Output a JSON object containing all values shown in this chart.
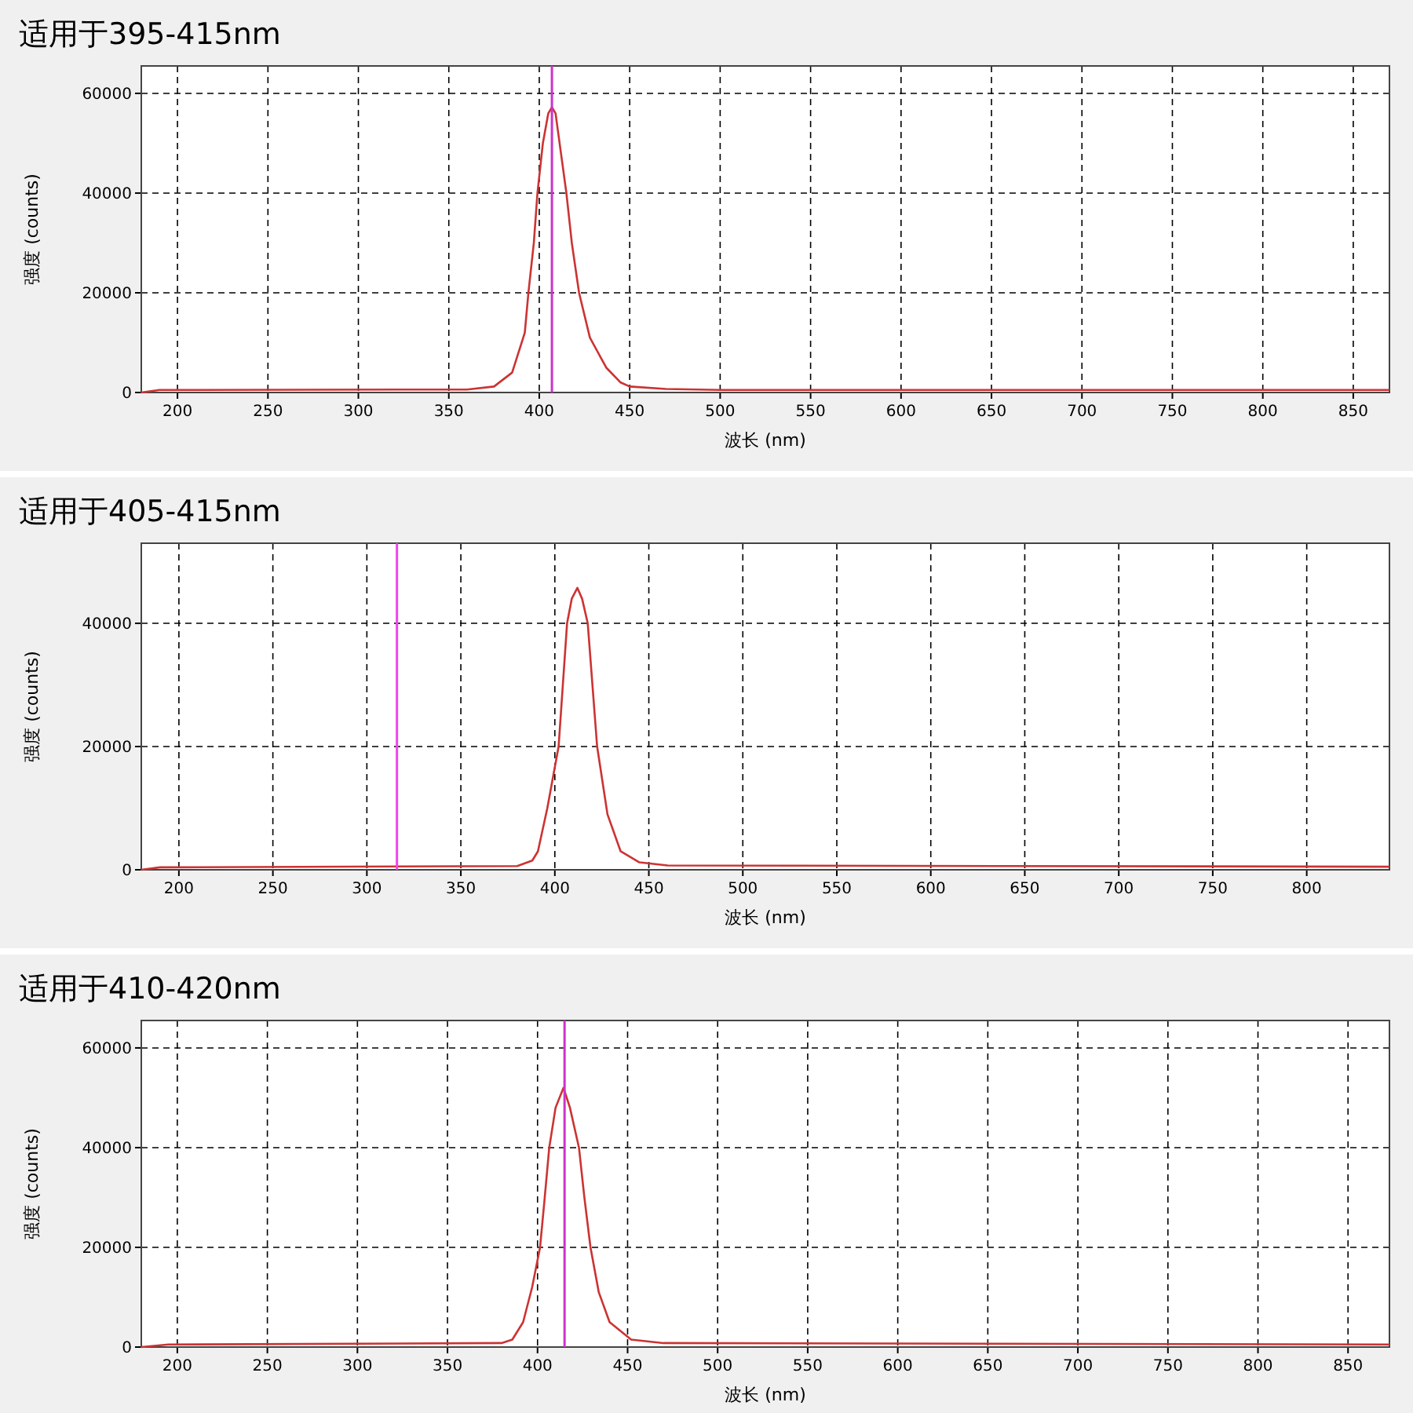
{
  "chart_data": [
    {
      "type": "line",
      "title": "适用于395-415nm",
      "xlabel": "波长 (nm)",
      "ylabel": "强度 (counts)",
      "xlim": [
        180,
        870
      ],
      "ylim": [
        0,
        65500
      ],
      "xticks": [
        200,
        250,
        300,
        350,
        400,
        450,
        500,
        550,
        600,
        650,
        700,
        750,
        800,
        850
      ],
      "yticks": [
        0,
        20000,
        40000,
        60000
      ],
      "grid": true,
      "series": [
        {
          "color": "#cc3333",
          "x": [
            180,
            190,
            360,
            375,
            385,
            392,
            394,
            397,
            399,
            402,
            405,
            407,
            409,
            412,
            415,
            418,
            422,
            428,
            437,
            445,
            450,
            470,
            500,
            870
          ],
          "values": [
            0,
            500,
            600,
            1200,
            4000,
            12000,
            20000,
            30000,
            40000,
            50000,
            56000,
            57200,
            56000,
            48000,
            40000,
            30000,
            20000,
            11000,
            5000,
            2000,
            1200,
            700,
            500,
            500
          ]
        }
      ],
      "ref_lines": [
        {
          "axis": "x",
          "value": 407,
          "color": "#cc33cc"
        }
      ]
    },
    {
      "type": "line",
      "title": "适用于405-415nm",
      "xlabel": "波长 (nm)",
      "ylabel": "强度 (counts)",
      "xlim": [
        180,
        844
      ],
      "ylim": [
        0,
        53000
      ],
      "xticks": [
        200,
        250,
        300,
        350,
        400,
        450,
        500,
        550,
        600,
        650,
        700,
        750,
        800
      ],
      "yticks": [
        0,
        20000,
        40000
      ],
      "grid": true,
      "series": [
        {
          "color": "#cc3333",
          "x": [
            180,
            190,
            380,
            388,
            391,
            396,
            402,
            406.5,
            409,
            412,
            414.5,
            417.5,
            422.5,
            428,
            435,
            445,
            460,
            844
          ],
          "values": [
            0,
            400,
            600,
            1500,
            3000,
            10000,
            20000,
            40000,
            44000,
            45750,
            44000,
            40000,
            20000,
            9000,
            3000,
            1200,
            700,
            500
          ]
        }
      ],
      "ref_lines": [
        {
          "axis": "x",
          "value": 316,
          "color": "#ee44ee"
        }
      ]
    },
    {
      "type": "line",
      "title": "适用于410-420nm",
      "xlabel": "波长 (nm)",
      "ylabel": "强度 (counts)",
      "xlim": [
        180,
        873
      ],
      "ylim": [
        0,
        65500
      ],
      "xticks": [
        200,
        250,
        300,
        350,
        400,
        450,
        500,
        550,
        600,
        650,
        700,
        750,
        800,
        850
      ],
      "yticks": [
        0,
        20000,
        40000,
        60000
      ],
      "grid": true,
      "series": [
        {
          "color": "#cc3333",
          "x": [
            180,
            195,
            380,
            386,
            392,
            397,
            401.4,
            404,
            406.5,
            410,
            414.4,
            418,
            423,
            426,
            429.4,
            434,
            440,
            452,
            470,
            873
          ],
          "values": [
            0,
            500,
            800,
            1500,
            5000,
            12000,
            20000,
            30000,
            40000,
            48000,
            52000,
            48000,
            40000,
            30000,
            20000,
            11000,
            5000,
            1500,
            800,
            500
          ]
        }
      ],
      "ref_lines": [
        {
          "axis": "x",
          "value": 415,
          "color": "#cc33cc"
        }
      ]
    }
  ]
}
